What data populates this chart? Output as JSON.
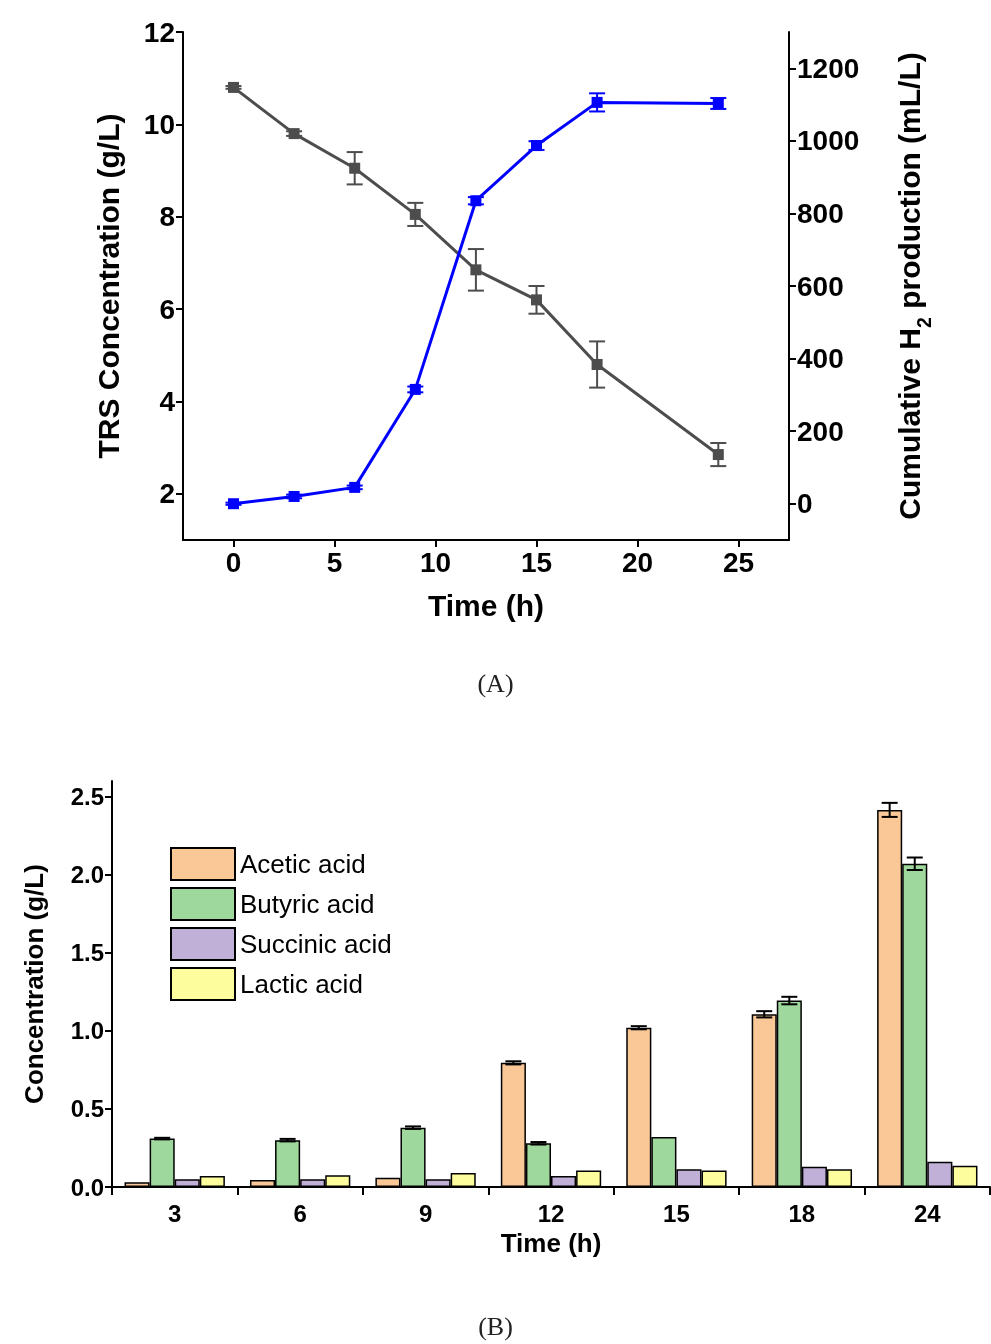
{
  "chart_data": [
    {
      "type": "line",
      "xlabel": "Time (h)",
      "ylabel": "TRS Concentration (g/L)",
      "y2label": "Cumulative H$_{2}$ production (mL/L)",
      "annotations": [
        "(A)"
      ],
      "xlim": [
        -2.5,
        27.5
      ],
      "xticks": [
        0,
        5,
        10,
        15,
        20,
        25
      ],
      "ylim": [
        1,
        12
      ],
      "yticks": [
        2,
        4,
        6,
        8,
        10,
        12
      ],
      "y2lim": [
        -100,
        1300
      ],
      "y2ticks": [
        0,
        200,
        400,
        600,
        800,
        1000,
        1200
      ],
      "x": [
        0,
        3,
        6,
        9,
        12,
        15,
        18,
        24
      ],
      "marker": "square",
      "line_style": "solid",
      "grid": false,
      "legend": false,
      "series": [
        {
          "color": "#4d4d4d",
          "values": [
            10.8,
            9.8,
            9.05,
            8.05,
            6.85,
            6.2,
            4.8,
            2.85
          ],
          "errors": [
            0.03,
            0.05,
            0.35,
            0.25,
            0.45,
            0.3,
            0.5,
            0.25
          ]
        },
        {
          "color": "#0000ff",
          "axis": "y2",
          "values": [
            0,
            20,
            45,
            315,
            835,
            987,
            1106,
            1103
          ],
          "errors": [
            3,
            5,
            5,
            8,
            10,
            12,
            25,
            15
          ]
        }
      ]
    },
    {
      "type": "bar",
      "xlabel": "Time (h)",
      "ylabel": "Concentration (g/L)",
      "annotations": [
        "(B)"
      ],
      "categories": [
        "3",
        "6",
        "9",
        "12",
        "15",
        "18",
        "24"
      ],
      "ylim": [
        0,
        2.6
      ],
      "yticks": [
        {
          "value": 0,
          "label": "0.0"
        },
        {
          "value": 0.5,
          "label": "0.5"
        },
        {
          "value": 1,
          "label": "1.0"
        },
        {
          "value": 1.5,
          "label": "1.5"
        },
        {
          "value": 2,
          "label": "2.0"
        },
        {
          "value": 2.5,
          "label": "2.5"
        }
      ],
      "grid": false,
      "legend": "top left",
      "series": [
        {
          "name": "Acetic acid",
          "color": "#fac897",
          "values": [
            0.03,
            0.045,
            0.06,
            0.795,
            1.02,
            1.106,
            2.415
          ],
          "errors": [
            null,
            null,
            null,
            0.01,
            0.01,
            0.02,
            0.045
          ]
        },
        {
          "name": "Butyric acid",
          "color": "#9ed89c",
          "values": [
            0.31,
            0.3,
            0.38,
            0.28,
            0.32,
            1.194,
            2.07
          ],
          "errors": [
            0.005,
            0.008,
            0.008,
            0.008,
            null,
            0.024,
            0.04
          ]
        },
        {
          "name": "Succinic acid",
          "color": "#c0b0d8",
          "values": [
            0.05,
            0.05,
            0.05,
            0.07,
            0.113,
            0.13,
            0.162
          ],
          "errors": [
            null,
            null,
            null,
            null,
            null,
            null,
            null
          ]
        },
        {
          "name": "Lactic acid",
          "color": "#fdfd9e",
          "values": [
            0.07,
            0.075,
            0.09,
            0.105,
            0.105,
            0.113,
            0.136
          ],
          "errors": [
            null,
            null,
            null,
            null,
            null,
            null,
            null
          ]
        }
      ]
    }
  ]
}
